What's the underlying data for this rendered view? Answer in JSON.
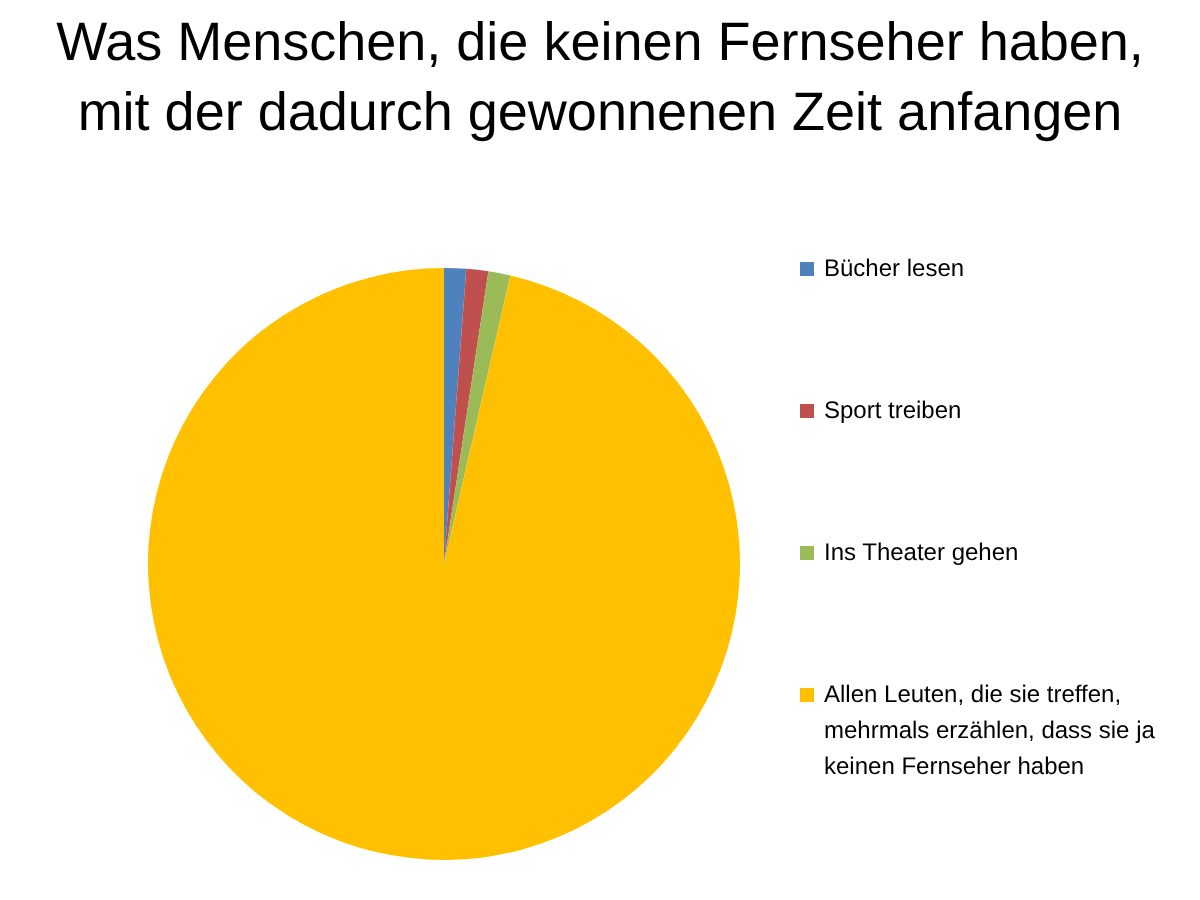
{
  "chart_data": {
    "type": "pie",
    "title": "Was Menschen, die keinen Fernseher haben, mit der dadurch gewonnenen Zeit anfangen",
    "categories": [
      "Bücher lesen",
      "Sport treiben",
      "Ins Theater gehen",
      "Allen Leuten, die sie treffen, mehrmals erzählen, dass sie ja keinen Fernseher haben"
    ],
    "values": [
      1.2,
      1.2,
      1.2,
      96.4
    ],
    "colors": [
      "#4f81bd",
      "#c0504d",
      "#9bbb59",
      "#ffc000"
    ],
    "legend": "right"
  }
}
